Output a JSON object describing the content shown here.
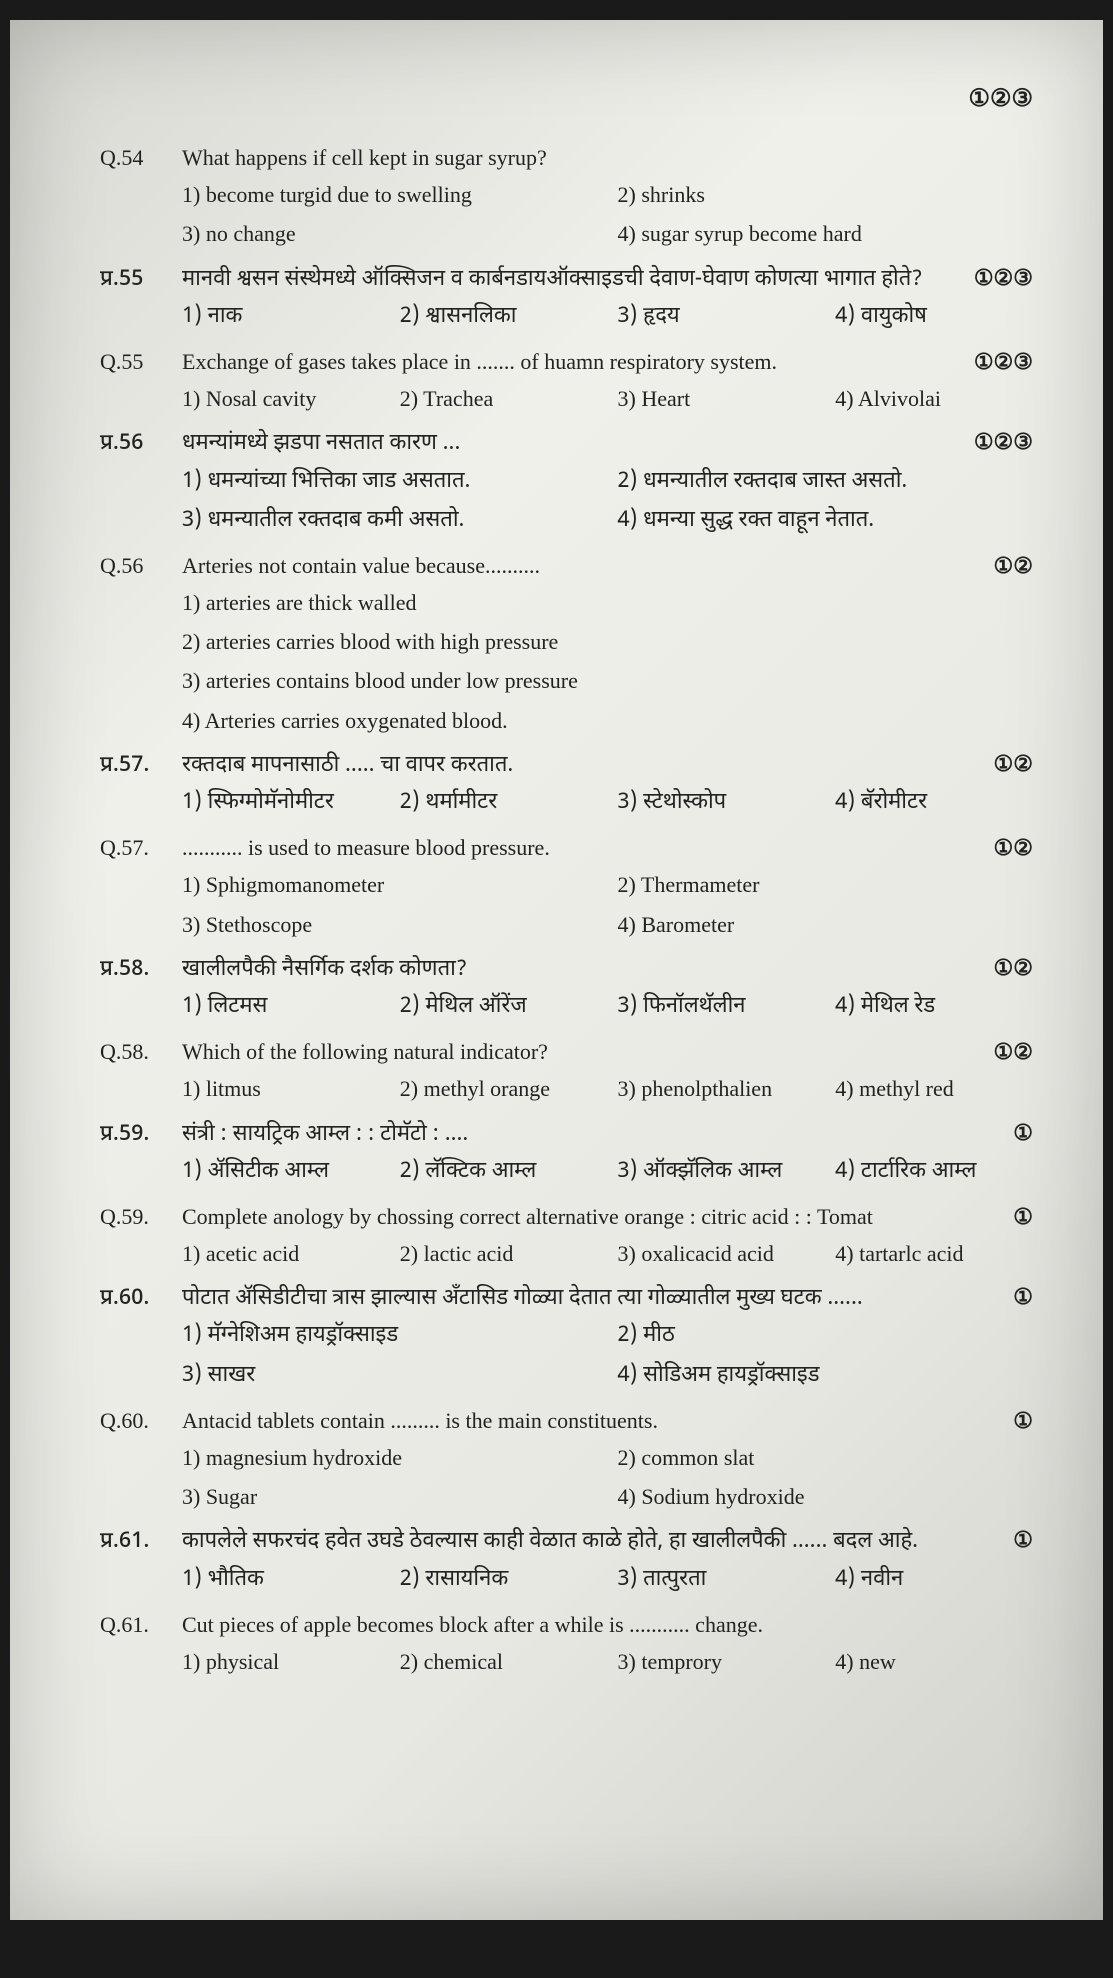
{
  "top_marker": "①②③",
  "questions": [
    {
      "num": "Q.54",
      "text": "What happens if cell kept in sugar syrup?",
      "marker": "",
      "opts": [
        "1) become turgid due to swelling",
        "2) shrinks",
        "3) no change",
        "4) sugar syrup become hard"
      ],
      "layout": "2col"
    },
    {
      "num": "प्र.55",
      "text": "मानवी श्वसन संस्थेमध्ये ऑक्सिजन व कार्बनडायऑक्साइडची देवाण-घेवाण कोणत्या भागात होते?",
      "marker": "①②③",
      "opts": [
        "1) नाक",
        "2) श्वासनलिका",
        "3) हृदय",
        "4) वायुकोष"
      ],
      "layout": "4col",
      "marathi": true
    },
    {
      "num": "Q.55",
      "text": "Exchange of gases takes place in ....... of huamn respiratory system.",
      "marker": "①②③",
      "opts": [
        "1) Nosal cavity",
        "2) Trachea",
        "3) Heart",
        "4) Alvivolai"
      ],
      "layout": "4col"
    },
    {
      "num": "प्र.56",
      "text": "धमन्यांमध्ये झडपा नसतात कारण ...",
      "marker": "①②③",
      "opts": [
        "1) धमन्यांच्या भित्तिका जाड असतात.",
        "2) धमन्यातील रक्तदाब जास्त असतो.",
        "3) धमन्यातील रक्तदाब कमी असतो.",
        "4) धमन्या सुद्ध रक्त वाहून नेतात."
      ],
      "layout": "2col",
      "marathi": true
    },
    {
      "num": "Q.56",
      "text": "Arteries not contain value because..........",
      "marker": "①②",
      "opts": [
        "1) arteries are thick walled",
        "2) arteries carries blood with high pressure",
        "3) arteries contains blood under low pressure",
        "4) Arteries carries oxygenated blood."
      ],
      "layout": "1col"
    },
    {
      "num": "प्र.57.",
      "text": "रक्तदाब मापनासाठी ..... चा वापर करतात.",
      "marker": "①②",
      "opts": [
        "1) स्फिग्मोमॅनोमीटर",
        "2) थर्मामीटर",
        "3) स्टेथोस्कोप",
        "4) बॅरोमीटर"
      ],
      "layout": "4col",
      "marathi": true
    },
    {
      "num": "Q.57.",
      "text": "........... is used to measure blood pressure.",
      "marker": "①②",
      "opts": [
        "1) Sphigmomanometer",
        "2) Thermameter",
        "3) Stethoscope",
        "4) Barometer"
      ],
      "layout": "2col"
    },
    {
      "num": "प्र.58.",
      "text": "खालीलपैकी नैसर्गिक दर्शक कोणता?",
      "marker": "①②",
      "opts": [
        "1) लिटमस",
        "2) मेथिल ऑरेंज",
        "3) फिनॉलथॅलीन",
        "4) मेथिल रेड"
      ],
      "layout": "4col",
      "marathi": true
    },
    {
      "num": "Q.58.",
      "text": "Which of the following natural indicator?",
      "marker": "①②",
      "opts": [
        "1) litmus",
        "2) methyl orange",
        "3) phenolpthalien",
        "4) methyl red"
      ],
      "layout": "4col"
    },
    {
      "num": "प्र.59.",
      "text": "संत्री : सायट्रिक आम्ल : : टोमॅटो : ....",
      "marker": "①",
      "opts": [
        "1) ॲसिटीक आम्ल",
        "2) लॅक्टिक आम्ल",
        "3) ऑक्झॅलिक आम्ल",
        "4) टार्टारिक आम्ल"
      ],
      "layout": "4col",
      "marathi": true
    },
    {
      "num": "Q.59.",
      "text": "Complete anology by chossing correct alternative orange : citric acid : : Tomat",
      "marker": "①",
      "opts": [
        "1) acetic acid",
        "2) lactic acid",
        "3) oxalicacid acid",
        "4) tartarlc acid"
      ],
      "layout": "4col"
    },
    {
      "num": "प्र.60.",
      "text": "पोटात ॲसिडीटीचा त्रास झाल्यास अँटासिड गोळ्या देतात त्या गोळ्यातील मुख्य घटक ......",
      "marker": "①",
      "opts": [
        "1) मॅग्नेशिअम हायड्रॉक्साइड",
        "2) मीठ",
        "3) साखर",
        "4) सोडिअम हायड्रॉक्साइड"
      ],
      "layout": "2col",
      "marathi": true
    },
    {
      "num": "Q.60.",
      "text": "Antacid tablets contain ......... is the main constituents.",
      "marker": "①",
      "opts": [
        "1) magnesium hydroxide",
        "2) common slat",
        "3) Sugar",
        "4) Sodium hydroxide"
      ],
      "layout": "2col"
    },
    {
      "num": "प्र.61.",
      "text": "कापलेले सफरचंद हवेत उघडे ठेवल्यास काही वेळात काळे होते, हा खालीलपैकी ...... बदल आहे.",
      "marker": "①",
      "opts": [
        "1) भौतिक",
        "2) रासायनिक",
        "3) तात्पुरता",
        "4) नवीन"
      ],
      "layout": "4col",
      "marathi": true
    },
    {
      "num": "Q.61.",
      "text": "Cut pieces of apple becomes block after a while is ........... change.",
      "marker": "",
      "opts": [
        "1) physical",
        "2) chemical",
        "3) temprory",
        "4) new"
      ],
      "layout": "4col"
    }
  ]
}
